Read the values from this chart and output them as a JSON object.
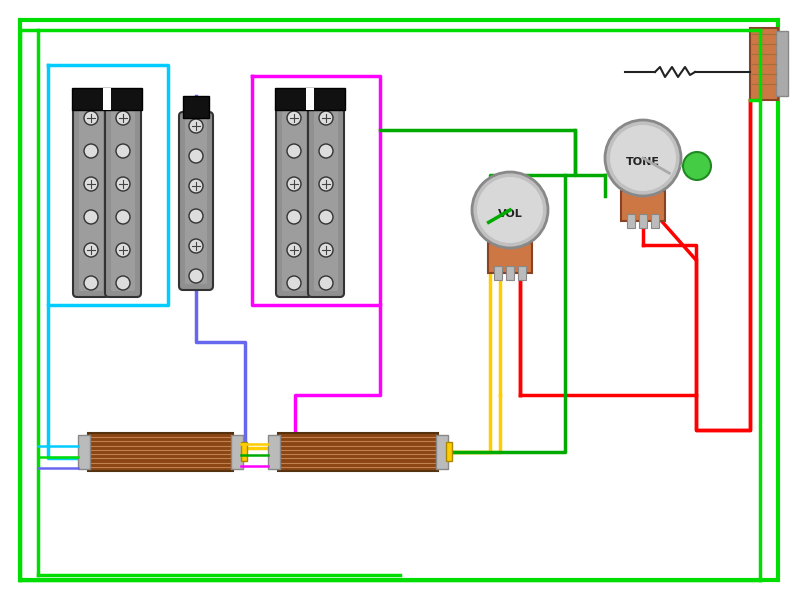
{
  "bg_color": "#ffffff",
  "wire_green_outer": "#00dd00",
  "wire_cyan": "#00ccff",
  "wire_blue": "#6666ee",
  "wire_magenta": "#ff00ff",
  "wire_yellow": "#ffcc00",
  "wire_red": "#ff0000",
  "wire_green": "#00aa00",
  "pickup_body": "#888888",
  "pickup_dark": "#555555",
  "pickup_top": "#111111",
  "pot_brown": "#cc7744",
  "pot_gray_light": "#cccccc",
  "pot_gray_dark": "#aaaaaa",
  "cap_green": "#44bb44",
  "jack_brown": "#cc7744",
  "jack_gray": "#aaaaaa",
  "selector_brown": "#8B4513",
  "selector_line": "#a07050",
  "selector_gray": "#aaaaaa",
  "selector_yellow": "#ffcc00"
}
